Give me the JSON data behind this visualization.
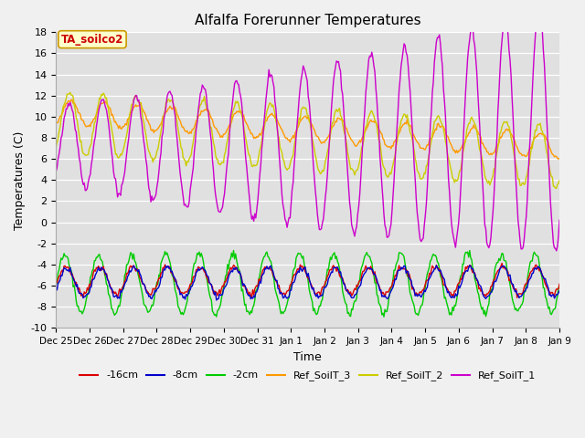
{
  "title": "Alfalfa Forerunner Temperatures",
  "xlabel": "Time",
  "ylabel": "Temperatures (C)",
  "ylim": [
    -10,
    18
  ],
  "annotation_text": "TA_soilco2",
  "annotation_color": "#cc0000",
  "annotation_bg": "#ffffcc",
  "annotation_border": "#cc9900",
  "fig_bg": "#f0f0f0",
  "plot_bg": "#e0e0e0",
  "line_colors": {
    "-16cm": "#dd0000",
    "-8cm": "#0000cc",
    "-2cm": "#00cc00",
    "Ref_SoilT_3": "#ff9900",
    "Ref_SoilT_2": "#cccc00",
    "Ref_SoilT_1": "#cc00cc"
  },
  "x_tick_labels": [
    "Dec 25",
    "Dec 26",
    "Dec 27",
    "Dec 28",
    "Dec 29",
    "Dec 30",
    "Dec 31",
    "Jan 1",
    "Jan 2",
    "Jan 3",
    "Jan 4",
    "Jan 5",
    "Jan 6",
    "Jan 7",
    "Jan 8",
    "Jan 9"
  ],
  "num_points": 500
}
